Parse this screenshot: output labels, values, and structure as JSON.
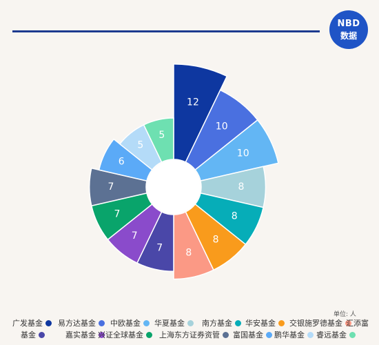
{
  "logo": {
    "line1": "NBD",
    "line2": "数据"
  },
  "unit_label": "单位: 人",
  "chart_data": {
    "type": "pie",
    "variant": "rose",
    "unit": "人",
    "categories": [
      "广发基金",
      "易方达基金",
      "中欧基金",
      "华夏基金",
      "南方基金",
      "华安基金",
      "交银施罗德基金",
      "汇添富基金",
      "嘉实基金",
      "兴证全球基金",
      "上海东方证券资管",
      "富国基金",
      "鹏华基金",
      "睿远基金"
    ],
    "values": [
      12,
      10,
      10,
      8,
      8,
      8,
      8,
      7,
      7,
      7,
      7,
      6,
      5,
      5
    ],
    "colors": [
      "#0e37a0",
      "#4a70e0",
      "#63b6f4",
      "#a6d2db",
      "#06adb8",
      "#f99b1c",
      "#fb9985",
      "#4a47a8",
      "#8a4bcb",
      "#09a46b",
      "#5c7193",
      "#5baaf7",
      "#b4dbf8",
      "#6ee0b1"
    ],
    "legend_position": "bottom"
  }
}
